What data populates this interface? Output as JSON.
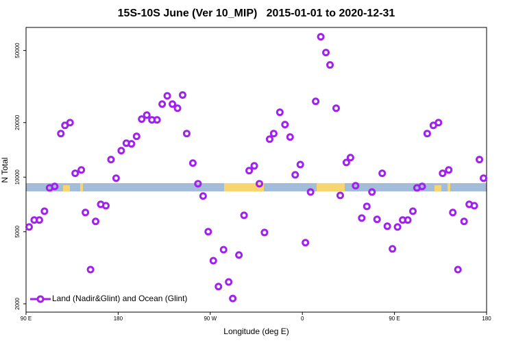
{
  "chart_data": {
    "type": "scatter",
    "title": "15S-10S June (Ver 10_MIP)   2015-01-01 to 2020-12-31",
    "x_label": "Longitude (deg E)",
    "y_label": "N Total",
    "log_y": true,
    "legend": "lower left",
    "xlim": [
      90,
      540
    ],
    "ylim": [
      1800,
      67000
    ],
    "xticks": [
      {
        "value": 90,
        "label": "90 E"
      },
      180,
      {
        "value": 270,
        "label": "90 W"
      },
      {
        "value": 360,
        "label": "0"
      },
      {
        "value": 450,
        "label": "90 E"
      },
      {
        "value": 540,
        "label": "180"
      }
    ],
    "yticks": [
      2000,
      5000,
      10000,
      20000,
      50000
    ],
    "series": [
      {
        "name": "Land (Nadir&Glint) and Ocean (Glint)",
        "color": "#a020f0",
        "x": [
          93,
          98,
          103,
          108,
          113,
          118,
          124,
          128,
          133,
          138,
          144,
          148,
          153,
          158,
          163,
          168,
          173,
          178,
          183,
          188,
          193,
          198,
          203,
          208,
          213,
          218,
          223,
          228,
          233,
          238,
          243,
          247,
          253,
          258,
          263,
          268,
          273,
          278,
          283,
          288,
          292,
          298,
          303,
          308,
          313,
          318,
          323,
          328,
          332,
          338,
          343,
          348,
          353,
          358,
          363,
          368,
          373,
          378,
          383,
          387,
          393,
          397,
          403,
          407,
          412,
          418,
          423,
          428,
          433,
          438,
          443,
          448,
          453,
          458,
          463,
          468,
          472,
          477,
          482,
          488,
          493,
          497,
          503,
          507,
          512,
          518,
          523,
          528,
          533,
          537
        ],
        "values": [
          5310,
          5800,
          5800,
          6490,
          8730,
          8890,
          17400,
          19300,
          20000,
          10500,
          10960,
          6380,
          3090,
          5700,
          7080,
          6960,
          12500,
          9870,
          14000,
          15400,
          15270,
          16800,
          20900,
          22000,
          20700,
          20700,
          25300,
          28100,
          25300,
          24000,
          28400,
          17400,
          11960,
          9200,
          7870,
          5000,
          3460,
          2490,
          3980,
          2640,
          2140,
          3720,
          6160,
          10860,
          11540,
          9200,
          4950,
          16200,
          17400,
          22800,
          19500,
          16650,
          10300,
          11740,
          4350,
          8280,
          26200,
          59500,
          48700,
          41600,
          24000,
          7930,
          12050,
          12820,
          8970,
          5950,
          6900,
          8280,
          5850,
          10500,
          5360,
          4020,
          5310,
          5800,
          5800,
          6490,
          8730,
          8890,
          17400,
          19300,
          20000,
          10500,
          10960,
          6380,
          3090,
          5700,
          7080,
          6960,
          12500,
          9870
        ]
      }
    ]
  }
}
